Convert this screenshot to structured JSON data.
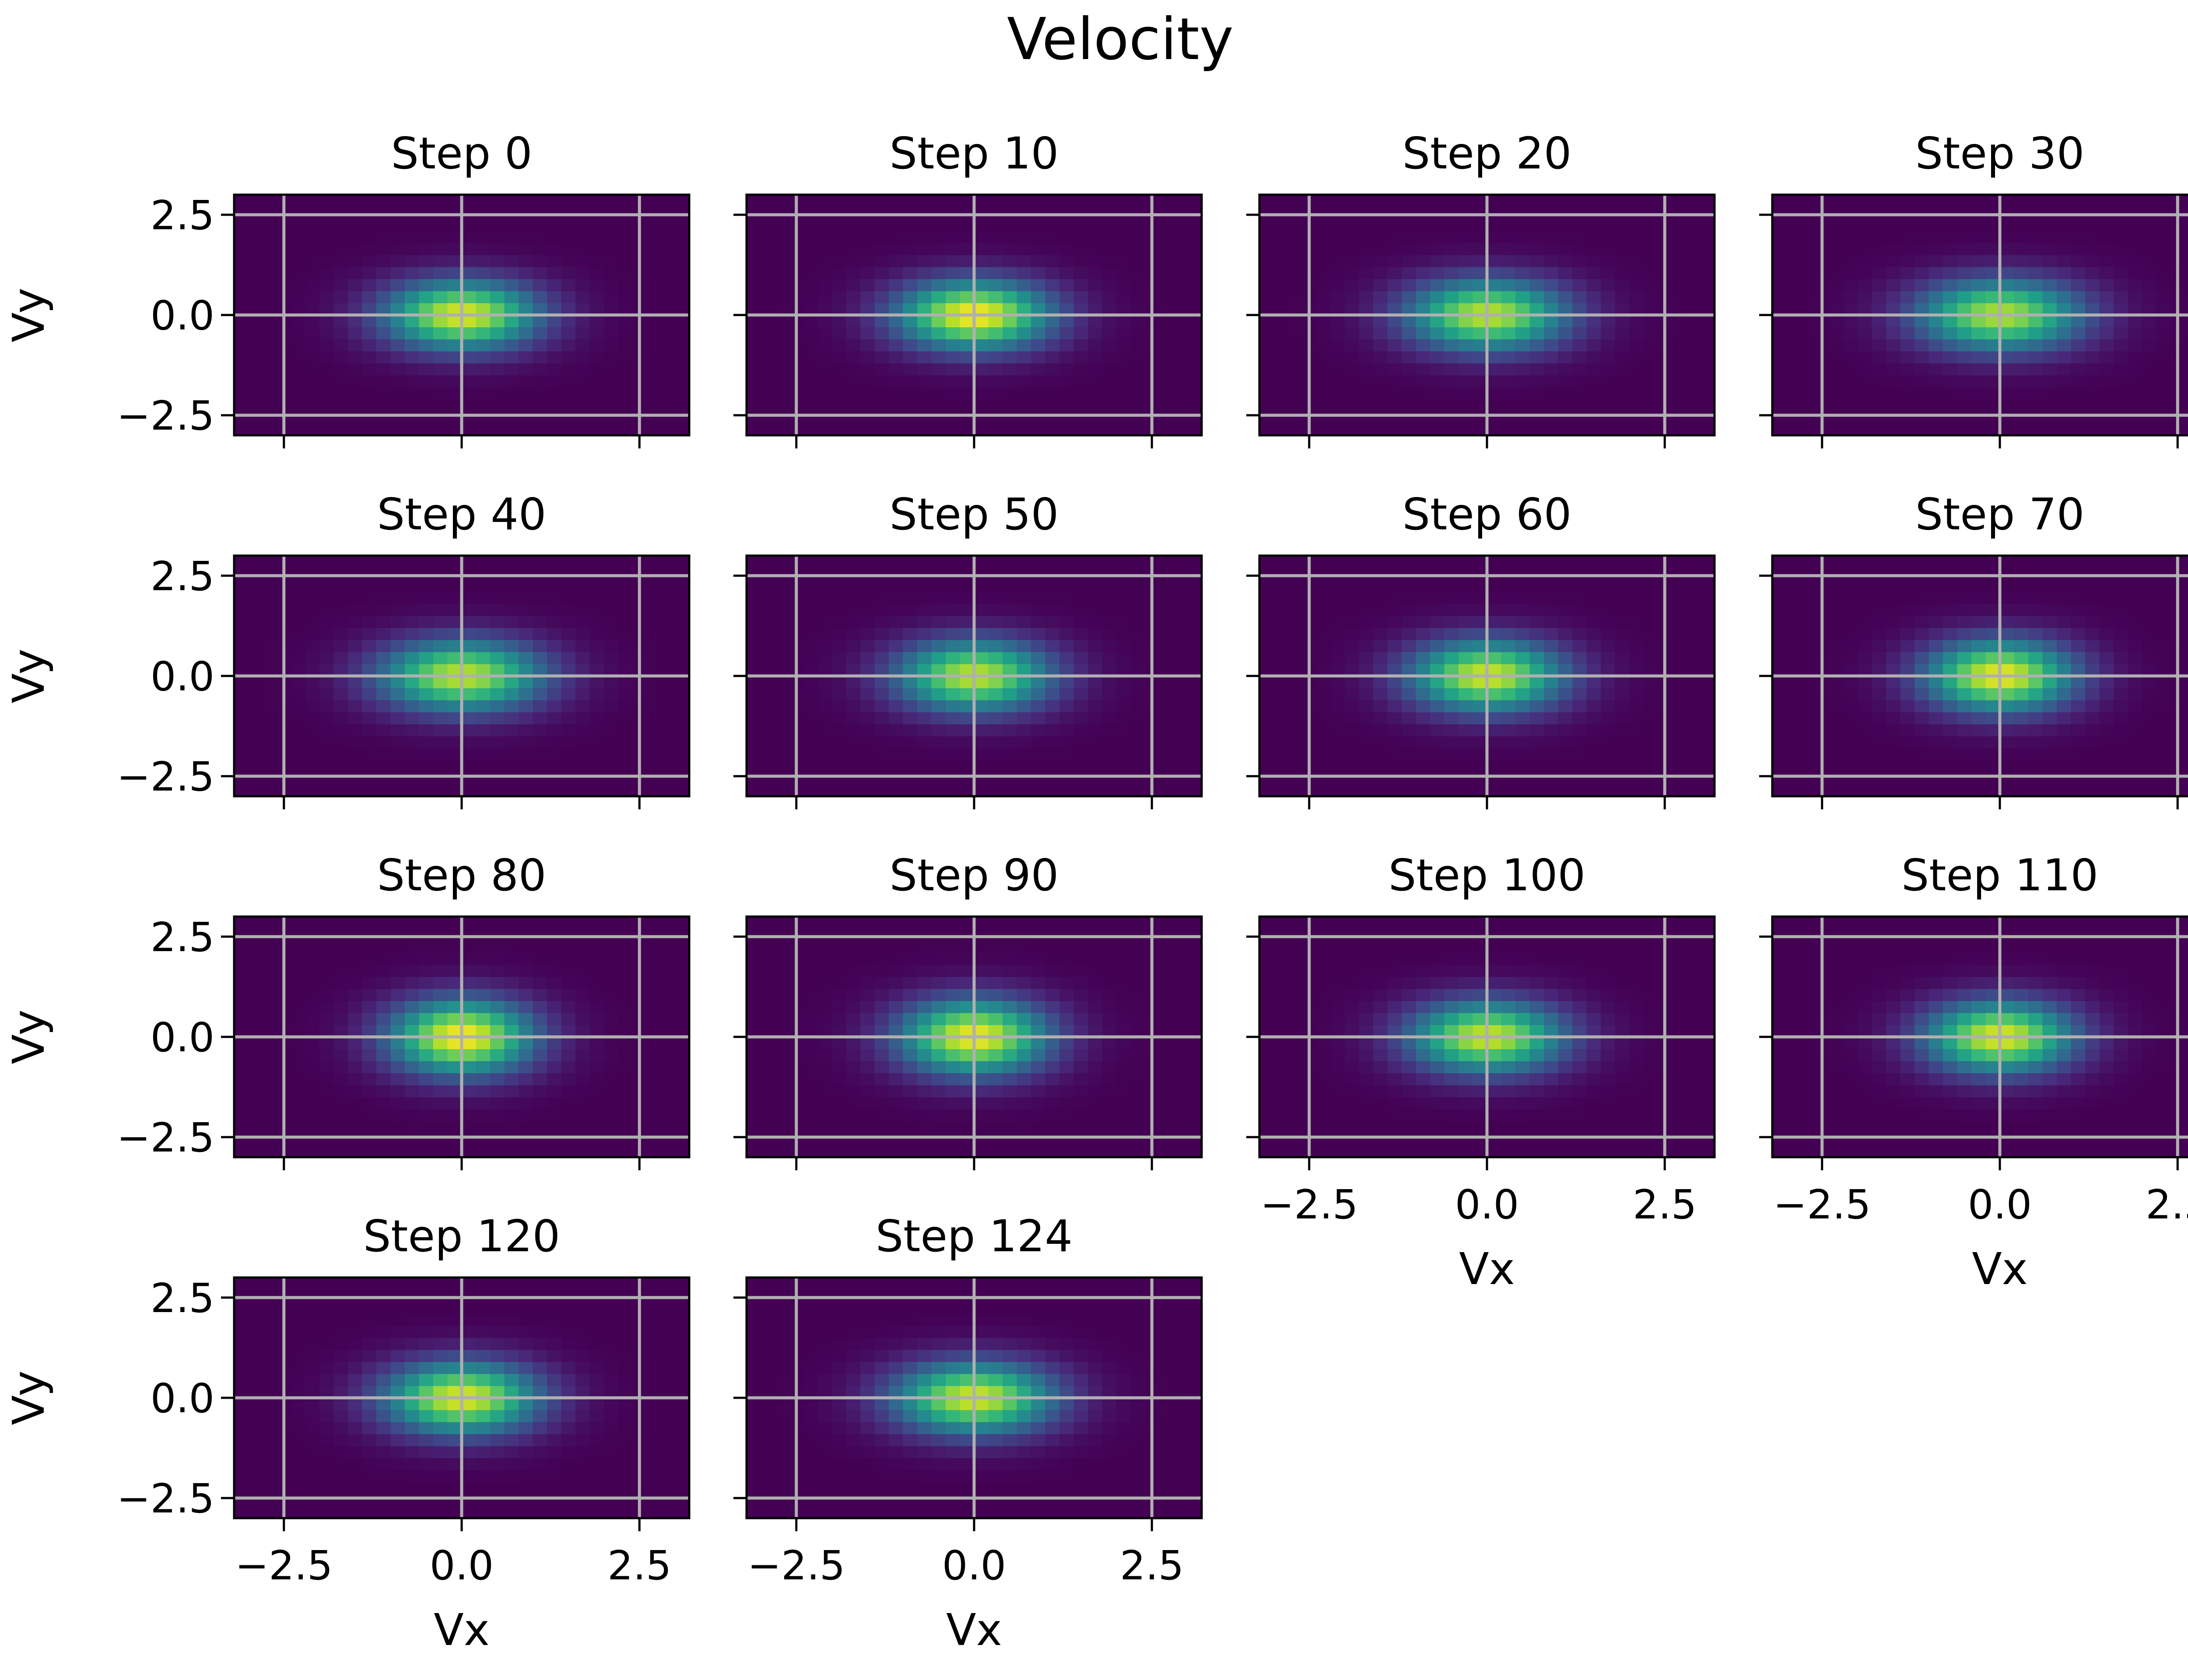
{
  "chart_data": {
    "type": "heatmap",
    "title": "Velocity",
    "xlabel": "Vx",
    "ylabel": "Vy",
    "xlim": [
      -3.2,
      3.2
    ],
    "ylim": [
      -3.0,
      3.0
    ],
    "xticks": [
      -2.5,
      0.0,
      2.5
    ],
    "yticks": [
      2.5,
      0.0,
      -2.5
    ],
    "xtick_labels": [
      "−2.5",
      "0.0",
      "2.5"
    ],
    "ytick_labels": [
      "2.5",
      "0.0",
      "−2.5"
    ],
    "grid": true,
    "colormap": "viridis",
    "bins": {
      "x": 32,
      "y": 20
    },
    "layout": {
      "rows": 4,
      "cols": 4
    },
    "panels": [
      {
        "title": "Step 0",
        "sx": 0.75,
        "sy": 0.6,
        "peak": 0.95
      },
      {
        "title": "Step 10",
        "sx": 0.75,
        "sy": 0.6,
        "peak": 1.0
      },
      {
        "title": "Step 20",
        "sx": 0.78,
        "sy": 0.62,
        "peak": 0.9
      },
      {
        "title": "Step 30",
        "sx": 0.8,
        "sy": 0.62,
        "peak": 0.88
      },
      {
        "title": "Step 40",
        "sx": 0.8,
        "sy": 0.62,
        "peak": 0.9
      },
      {
        "title": "Step 50",
        "sx": 0.75,
        "sy": 0.62,
        "peak": 0.9
      },
      {
        "title": "Step 60",
        "sx": 0.75,
        "sy": 0.62,
        "peak": 0.93
      },
      {
        "title": "Step 70",
        "sx": 0.72,
        "sy": 0.62,
        "peak": 0.97
      },
      {
        "title": "Step 80",
        "sx": 0.7,
        "sy": 0.65,
        "peak": 1.0
      },
      {
        "title": "Step 90",
        "sx": 0.72,
        "sy": 0.65,
        "peak": 0.98
      },
      {
        "title": "Step 100",
        "sx": 0.75,
        "sy": 0.62,
        "peak": 0.92
      },
      {
        "title": "Step 110",
        "sx": 0.72,
        "sy": 0.62,
        "peak": 0.95
      },
      {
        "title": "Step 120",
        "sx": 0.75,
        "sy": 0.62,
        "peak": 0.95
      },
      {
        "title": "Step 124",
        "sx": 0.78,
        "sy": 0.62,
        "peak": 0.93
      }
    ]
  }
}
